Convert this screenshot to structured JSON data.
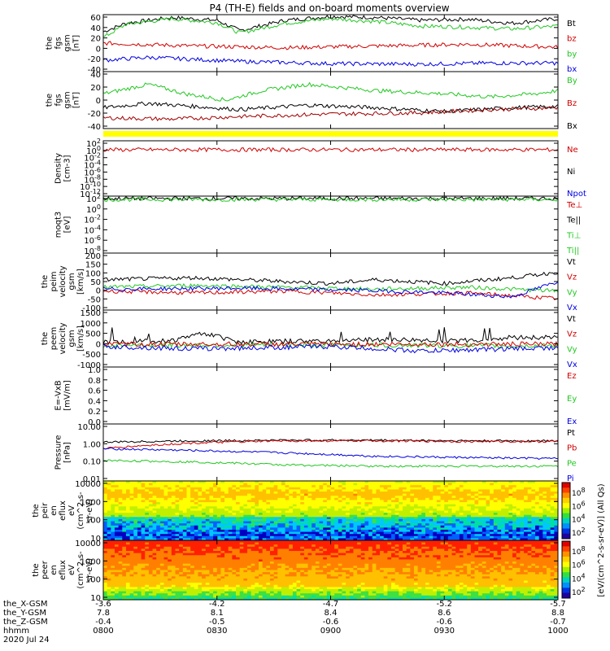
{
  "title": "P4 (TH-E) fields and on-board moments overview",
  "footer": {
    "row_labels": [
      "the_X-GSM",
      "the_Y-GSM",
      "the_Z-GSM",
      "hhmm",
      "2020 Jul 24"
    ],
    "ticks": [
      {
        "x": "-3.6",
        "y": "7.8",
        "z": "-0.4",
        "t": "0800"
      },
      {
        "x": "-4.2",
        "y": "8.1",
        "z": "-0.5",
        "t": "0830"
      },
      {
        "x": "-4.7",
        "y": "8.4",
        "z": "-0.6",
        "t": "0900"
      },
      {
        "x": "-5.2",
        "y": "8.6",
        "z": "-0.6",
        "t": "0930"
      },
      {
        "x": "-5.7",
        "y": "8.8",
        "z": "-0.7",
        "t": "1000"
      }
    ]
  },
  "colorbar": {
    "label": "[eV/(cm^2-s-sr-eV)] (All Qs)",
    "upper_ticks": [
      "10^8",
      "10^6",
      "10^4",
      "10^2"
    ],
    "lower_ticks": [
      "10^8",
      "10^6",
      "10^4",
      "10^2"
    ]
  },
  "chart_data": [
    {
      "type": "line",
      "ylabel": [
        "the",
        "fgs",
        "gsm",
        "[nT]"
      ],
      "yticks": [
        "60",
        "40",
        "20",
        "0",
        "-20",
        "-40"
      ],
      "ylim": [
        -40,
        60
      ],
      "legend": [
        {
          "name": "Bt",
          "color": "#000000"
        },
        {
          "name": "bz",
          "color": "#d00000"
        },
        {
          "name": "by",
          "color": "#22c822"
        },
        {
          "name": "bx",
          "color": "#0000e0"
        }
      ],
      "series": [
        {
          "name": "Bt",
          "color": "#000000",
          "points": [
            [
              0,
              30
            ],
            [
              0.05,
              45
            ],
            [
              0.15,
              55
            ],
            [
              0.25,
              50
            ],
            [
              0.3,
              32
            ],
            [
              0.4,
              50
            ],
            [
              0.5,
              57
            ],
            [
              0.6,
              55
            ],
            [
              0.7,
              50
            ],
            [
              0.8,
              52
            ],
            [
              0.9,
              45
            ],
            [
              1,
              53
            ]
          ]
        },
        {
          "name": "by",
          "color": "#22c822",
          "points": [
            [
              0,
              20
            ],
            [
              0.05,
              43
            ],
            [
              0.15,
              53
            ],
            [
              0.25,
              46
            ],
            [
              0.3,
              28
            ],
            [
              0.4,
              45
            ],
            [
              0.5,
              53
            ],
            [
              0.6,
              48
            ],
            [
              0.7,
              40
            ],
            [
              0.8,
              38
            ],
            [
              0.9,
              35
            ],
            [
              1,
              40
            ]
          ]
        },
        {
          "name": "bz",
          "color": "#d00000",
          "points": [
            [
              0,
              10
            ],
            [
              0.2,
              5
            ],
            [
              0.4,
              2
            ],
            [
              0.6,
              5
            ],
            [
              0.8,
              8
            ],
            [
              1,
              3
            ]
          ]
        },
        {
          "name": "bx",
          "color": "#0000e0",
          "points": [
            [
              0,
              -20
            ],
            [
              0.1,
              -15
            ],
            [
              0.3,
              -22
            ],
            [
              0.5,
              -26
            ],
            [
              0.7,
              -27
            ],
            [
              0.85,
              -25
            ],
            [
              1,
              -25
            ]
          ]
        }
      ]
    },
    {
      "type": "line",
      "ylabel": [
        "the",
        "fgs",
        "gsm",
        "[nT]"
      ],
      "yticks": [
        "40",
        "20",
        "0",
        "-20",
        "-40"
      ],
      "ylim": [
        -45,
        45
      ],
      "legend": [
        {
          "name": "By",
          "color": "#22c822"
        },
        {
          "name": "Bz",
          "color": "#d00000"
        },
        {
          "name": "Bx",
          "color": "#000000"
        }
      ],
      "series": [
        {
          "name": "By",
          "color": "#22c822",
          "points": [
            [
              0,
              10
            ],
            [
              0.1,
              25
            ],
            [
              0.18,
              10
            ],
            [
              0.27,
              0
            ],
            [
              0.35,
              15
            ],
            [
              0.45,
              25
            ],
            [
              0.6,
              15
            ],
            [
              0.75,
              10
            ],
            [
              0.85,
              5
            ],
            [
              0.95,
              10
            ],
            [
              1,
              15
            ]
          ]
        },
        {
          "name": "Bx",
          "color": "#000000",
          "points": [
            [
              0,
              -12
            ],
            [
              0.1,
              -5
            ],
            [
              0.2,
              -10
            ],
            [
              0.3,
              -15
            ],
            [
              0.45,
              -8
            ],
            [
              0.6,
              -12
            ],
            [
              0.75,
              -18
            ],
            [
              0.9,
              -12
            ],
            [
              1,
              -10
            ]
          ]
        },
        {
          "name": "Bz",
          "color": "#a00000",
          "points": [
            [
              0,
              -28
            ],
            [
              0.15,
              -30
            ],
            [
              0.3,
              -26
            ],
            [
              0.5,
              -22
            ],
            [
              0.7,
              -20
            ],
            [
              0.85,
              -15
            ],
            [
              1,
              -12
            ]
          ]
        }
      ]
    },
    {
      "type": "line",
      "ylabel": [
        "Density",
        "[cm-3]"
      ],
      "yticks": [
        "10^2",
        "10^0",
        "10^-2",
        "10^-4",
        "10^-6",
        "10^-8",
        "10^-10",
        "10^-12"
      ],
      "ylim": [
        -13,
        2.5
      ],
      "legend": [
        {
          "name": "Ne",
          "color": "#d00000"
        },
        {
          "name": "Ni",
          "color": "#000000"
        },
        {
          "name": "Npot",
          "color": "#0000e0"
        }
      ],
      "series": [
        {
          "name": "Ne",
          "color": "#d00000",
          "points": [
            [
              0,
              0
            ],
            [
              1,
              0
            ]
          ]
        }
      ]
    },
    {
      "type": "line",
      "ylabel": [
        "moqt3",
        "[eV]"
      ],
      "yticks": [
        "10^2",
        "10^0",
        "10^-2",
        "10^-4",
        "10^-6",
        "10^-8"
      ],
      "ylim": [
        -9,
        3
      ],
      "legend": [
        {
          "name": "Te⊥",
          "color": "#d00000"
        },
        {
          "name": "Te||",
          "color": "#000000"
        },
        {
          "name": "Ti⊥",
          "color": "#22c822"
        },
        {
          "name": "Ti||",
          "color": "#22c822"
        }
      ],
      "series": [
        {
          "name": "Te||",
          "color": "#000000",
          "points": [
            [
              0,
              2.5
            ],
            [
              1,
              2.5
            ]
          ]
        },
        {
          "name": "Ti||",
          "color": "#22c822",
          "points": [
            [
              0,
              2.3
            ],
            [
              1,
              2.3
            ]
          ]
        }
      ]
    },
    {
      "type": "line",
      "ylabel": [
        "the",
        "peim",
        "velocity",
        "gsm",
        "[km/s]"
      ],
      "yticks": [
        "200",
        "150",
        "100",
        "50",
        "0",
        "-50",
        "-100"
      ],
      "ylim": [
        -100,
        200
      ],
      "legend": [
        {
          "name": "Vt",
          "color": "#000000"
        },
        {
          "name": "Vz",
          "color": "#d00000"
        },
        {
          "name": "Vy",
          "color": "#22c822"
        },
        {
          "name": "Vx",
          "color": "#0000e0"
        }
      ],
      "series": [
        {
          "name": "Vt",
          "color": "#000000",
          "points": [
            [
              0,
              60
            ],
            [
              0.2,
              70
            ],
            [
              0.4,
              50
            ],
            [
              0.5,
              40
            ],
            [
              0.6,
              60
            ],
            [
              0.75,
              40
            ],
            [
              0.9,
              70
            ],
            [
              1,
              100
            ]
          ]
        },
        {
          "name": "Vy",
          "color": "#22c822",
          "points": [
            [
              0,
              20
            ],
            [
              0.2,
              30
            ],
            [
              0.4,
              20
            ],
            [
              0.6,
              10
            ],
            [
              0.8,
              20
            ],
            [
              1,
              0
            ]
          ]
        },
        {
          "name": "Vz",
          "color": "#d00000",
          "points": [
            [
              0,
              0
            ],
            [
              0.2,
              -10
            ],
            [
              0.4,
              0
            ],
            [
              0.6,
              -20
            ],
            [
              0.8,
              -10
            ],
            [
              1,
              -40
            ]
          ]
        },
        {
          "name": "Vx",
          "color": "#0000e0",
          "points": [
            [
              0,
              10
            ],
            [
              0.3,
              15
            ],
            [
              0.55,
              5
            ],
            [
              0.75,
              -10
            ],
            [
              0.9,
              -30
            ],
            [
              1,
              50
            ]
          ]
        }
      ]
    },
    {
      "type": "line",
      "ylabel": [
        "the",
        "peem",
        "velocity",
        "gsm",
        "[km/s]"
      ],
      "yticks": [
        "1500",
        "1000",
        "500",
        "0",
        "-500",
        "-1000"
      ],
      "ylim": [
        -1000,
        1500
      ],
      "legend": [
        {
          "name": "Vt",
          "color": "#000000"
        },
        {
          "name": "Vz",
          "color": "#d00000"
        },
        {
          "name": "Vy",
          "color": "#22c822"
        },
        {
          "name": "Vx",
          "color": "#0000e0"
        }
      ],
      "series": [
        {
          "name": "Vt",
          "color": "#000000",
          "points": [
            [
              0,
              100
            ],
            [
              0.15,
              150
            ],
            [
              0.22,
              500
            ],
            [
              0.3,
              100
            ],
            [
              0.5,
              150
            ],
            [
              0.6,
              200
            ],
            [
              0.8,
              150
            ],
            [
              0.9,
              300
            ],
            [
              1,
              300
            ]
          ]
        },
        {
          "name": "Vy",
          "color": "#22c822",
          "points": [
            [
              0,
              -50
            ],
            [
              0.3,
              -30
            ],
            [
              0.6,
              -40
            ],
            [
              0.9,
              -80
            ],
            [
              1,
              -60
            ]
          ]
        },
        {
          "name": "Vz",
          "color": "#d00000",
          "points": [
            [
              0,
              0
            ],
            [
              1,
              0
            ]
          ]
        },
        {
          "name": "Vx",
          "color": "#0000e0",
          "points": [
            [
              0,
              -100
            ],
            [
              0.2,
              -200
            ],
            [
              0.5,
              -100
            ],
            [
              0.7,
              -300
            ],
            [
              1,
              -150
            ]
          ]
        }
      ]
    },
    {
      "type": "line",
      "ylabel": [
        "E=-VxB",
        "[mV/m]"
      ],
      "yticks": [
        "1.0",
        "0.8",
        "0.6",
        "0.4",
        "0.2",
        "0.0"
      ],
      "ylim": [
        0,
        1
      ],
      "legend": [
        {
          "name": "Ez",
          "color": "#d00000"
        },
        {
          "name": "Ey",
          "color": "#22c822"
        },
        {
          "name": "Ex",
          "color": "#0000e0"
        }
      ],
      "series": []
    },
    {
      "type": "line",
      "ylabel": [
        "Pressure",
        "[nPa]"
      ],
      "yticks": [
        "10.00",
        "1.00",
        "0.10",
        "0.01"
      ],
      "ylim": [
        -2,
        1
      ],
      "yscale": "log",
      "legend": [
        {
          "name": "Pt",
          "color": "#000000"
        },
        {
          "name": "Pb",
          "color": "#d00000"
        },
        {
          "name": "Pe",
          "color": "#22c822"
        },
        {
          "name": "Pi",
          "color": "#0000e0"
        }
      ],
      "series": [
        {
          "name": "Pt",
          "color": "#000000",
          "points": [
            [
              0,
              1.1
            ],
            [
              0.2,
              1.3
            ],
            [
              0.4,
              1.4
            ],
            [
              0.6,
              1.4
            ],
            [
              0.8,
              1.3
            ],
            [
              1,
              1.3
            ]
          ]
        },
        {
          "name": "Pb",
          "color": "#d00000",
          "points": [
            [
              0,
              0.5
            ],
            [
              0.2,
              1.0
            ],
            [
              0.4,
              1.3
            ],
            [
              0.6,
              1.3
            ],
            [
              0.8,
              1.2
            ],
            [
              1,
              1.2
            ]
          ]
        },
        {
          "name": "Pi",
          "color": "#0000e0",
          "points": [
            [
              0,
              0.5
            ],
            [
              0.2,
              0.4
            ],
            [
              0.4,
              0.3
            ],
            [
              0.6,
              0.2
            ],
            [
              0.8,
              0.17
            ],
            [
              1,
              0.15
            ]
          ]
        },
        {
          "name": "Pe",
          "color": "#22c822",
          "points": [
            [
              0,
              0.12
            ],
            [
              0.2,
              0.1
            ],
            [
              0.4,
              0.07
            ],
            [
              0.6,
              0.06
            ],
            [
              0.8,
              0.06
            ],
            [
              1,
              0.06
            ]
          ]
        }
      ]
    },
    {
      "type": "heatmap",
      "ylabel": [
        "the",
        "peir",
        "en",
        "eflux",
        "eV",
        "(cm^2-s-",
        "sr-eV)"
      ],
      "yticks": [
        "10000",
        "1000",
        "100",
        "10"
      ],
      "ylim": [
        0.8,
        4.1
      ]
    },
    {
      "type": "heatmap",
      "ylabel": [
        "the",
        "peer",
        "en",
        "eflux",
        "eV",
        "(cm^2-s-",
        "sr-eV)"
      ],
      "yticks": [
        "10000",
        "1000",
        "100",
        "10"
      ],
      "ylim": [
        0.8,
        4.1
      ]
    }
  ]
}
